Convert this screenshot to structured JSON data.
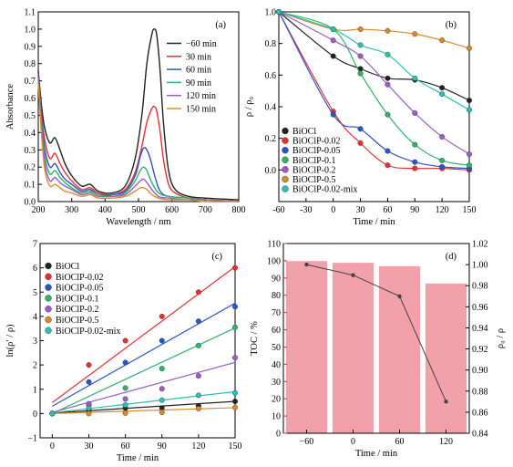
{
  "colors": {
    "black": "#222222",
    "red": "#e63030",
    "blue": "#2a55c8",
    "green": "#2db36a",
    "purple": "#9b5cc8",
    "orange": "#d98a2b",
    "teal": "#2bc0b0",
    "dark_red": "#e84a4a",
    "bar": "#f2a0aa",
    "axis_red": "#c0392b"
  },
  "chart_data": [
    {
      "panel": "(a)",
      "type": "line",
      "xlabel": "Wavelength / nm",
      "ylabel": "Absorbance",
      "xlim": [
        200,
        800
      ],
      "ylim": [
        0,
        1.1
      ],
      "xticks": [
        200,
        300,
        400,
        500,
        600,
        700,
        800
      ],
      "yticks": [
        0.0,
        0.1,
        0.2,
        0.3,
        0.4,
        0.5,
        0.6,
        0.7,
        0.8,
        0.9,
        1.0,
        1.1
      ],
      "ytick_labels": [
        "0.0",
        "0.1",
        "0.2",
        "0.3",
        "0.4",
        "0.5",
        "0.6",
        "0.7",
        "0.8",
        "0.9",
        "1.0",
        "1.1"
      ],
      "legend_position": "top-right",
      "series": [
        {
          "name": "−60 min",
          "color": "#222222",
          "x": [
            200,
            210,
            220,
            235,
            250,
            265,
            280,
            300,
            330,
            355,
            380,
            420,
            460,
            490,
            510,
            525,
            540,
            548,
            555,
            565,
            575,
            590,
            610,
            650,
            700,
            800
          ],
          "y": [
            0.76,
            0.55,
            0.42,
            0.34,
            0.37,
            0.3,
            0.22,
            0.15,
            0.09,
            0.1,
            0.06,
            0.05,
            0.09,
            0.25,
            0.5,
            0.8,
            0.97,
            1.0,
            0.96,
            0.75,
            0.45,
            0.18,
            0.07,
            0.03,
            0.02,
            0.01
          ]
        },
        {
          "name": "30 min",
          "color": "#e63030",
          "x": [
            200,
            210,
            220,
            235,
            250,
            265,
            280,
            300,
            330,
            355,
            380,
            420,
            460,
            490,
            510,
            525,
            540,
            548,
            555,
            565,
            575,
            590,
            610,
            650,
            700,
            800
          ],
          "y": [
            0.74,
            0.5,
            0.35,
            0.25,
            0.28,
            0.22,
            0.17,
            0.12,
            0.07,
            0.08,
            0.05,
            0.04,
            0.07,
            0.17,
            0.32,
            0.46,
            0.54,
            0.55,
            0.52,
            0.4,
            0.24,
            0.1,
            0.05,
            0.02,
            0.01,
            0.0
          ]
        },
        {
          "name": "60 min",
          "color": "#2a55c8",
          "x": [
            200,
            210,
            220,
            235,
            250,
            265,
            280,
            300,
            330,
            355,
            380,
            420,
            460,
            490,
            505,
            515,
            525,
            535,
            550,
            565,
            590,
            650,
            700,
            800
          ],
          "y": [
            0.73,
            0.47,
            0.3,
            0.2,
            0.22,
            0.17,
            0.13,
            0.1,
            0.06,
            0.07,
            0.04,
            0.04,
            0.06,
            0.15,
            0.26,
            0.31,
            0.3,
            0.25,
            0.14,
            0.06,
            0.03,
            0.02,
            0.01,
            0.0
          ]
        },
        {
          "name": "90 min",
          "color": "#2db36a",
          "x": [
            200,
            210,
            220,
            235,
            250,
            265,
            280,
            300,
            330,
            355,
            380,
            420,
            460,
            490,
            505,
            515,
            525,
            540,
            560,
            590,
            650,
            700,
            800
          ],
          "y": [
            0.72,
            0.45,
            0.26,
            0.16,
            0.18,
            0.14,
            0.11,
            0.08,
            0.05,
            0.06,
            0.04,
            0.03,
            0.05,
            0.12,
            0.18,
            0.2,
            0.18,
            0.11,
            0.05,
            0.03,
            0.02,
            0.01,
            0.0
          ]
        },
        {
          "name": "120 min",
          "color": "#9b5cc8",
          "x": [
            200,
            210,
            220,
            235,
            250,
            265,
            280,
            300,
            330,
            355,
            380,
            420,
            460,
            490,
            505,
            515,
            525,
            540,
            560,
            590,
            650,
            700,
            800
          ],
          "y": [
            0.71,
            0.42,
            0.22,
            0.12,
            0.14,
            0.11,
            0.09,
            0.07,
            0.04,
            0.05,
            0.03,
            0.03,
            0.04,
            0.09,
            0.12,
            0.13,
            0.11,
            0.07,
            0.03,
            0.02,
            0.01,
            0.01,
            0.0
          ]
        },
        {
          "name": "150 min",
          "color": "#d98a2b",
          "x": [
            200,
            210,
            220,
            235,
            250,
            265,
            280,
            300,
            330,
            355,
            380,
            420,
            460,
            490,
            505,
            515,
            525,
            540,
            560,
            590,
            650,
            700,
            800
          ],
          "y": [
            0.69,
            0.38,
            0.18,
            0.09,
            0.1,
            0.08,
            0.06,
            0.05,
            0.03,
            0.04,
            0.02,
            0.02,
            0.03,
            0.06,
            0.08,
            0.08,
            0.07,
            0.04,
            0.02,
            0.01,
            0.01,
            0.0,
            0.0
          ]
        }
      ]
    },
    {
      "panel": "(b)",
      "type": "line",
      "xlabel": "Time / min",
      "ylabel": "ρ / ρ₀",
      "xlim": [
        -60,
        150
      ],
      "ylim": [
        -0.2,
        1.0
      ],
      "xticks": [
        -60,
        -30,
        0,
        30,
        60,
        90,
        120,
        150
      ],
      "yticks": [
        0.0,
        0.2,
        0.4,
        0.6,
        0.8,
        1.0
      ],
      "ytick_labels": [
        "0.0",
        "0.2",
        "0.4",
        "0.6",
        "0.8",
        "1.0"
      ],
      "legend_position": "bottom-left",
      "series": [
        {
          "name": "BiOCl",
          "color": "#222222",
          "x": [
            -60,
            0,
            30,
            60,
            90,
            120,
            150
          ],
          "y": [
            1.0,
            0.72,
            0.64,
            0.58,
            0.57,
            0.52,
            0.44
          ]
        },
        {
          "name": "BiOClP-0.02",
          "color": "#e63030",
          "x": [
            -60,
            0,
            30,
            60,
            90,
            120,
            150
          ],
          "y": [
            1.0,
            0.37,
            0.17,
            0.03,
            0.01,
            0.01,
            0.0
          ]
        },
        {
          "name": "BiOClP-0.05",
          "color": "#2a55c8",
          "x": [
            -60,
            0,
            30,
            60,
            90,
            120,
            150
          ],
          "y": [
            1.0,
            0.35,
            0.26,
            0.12,
            0.05,
            0.02,
            0.01
          ]
        },
        {
          "name": "BiOClP-0.1",
          "color": "#2db36a",
          "x": [
            -60,
            0,
            30,
            60,
            90,
            120,
            150
          ],
          "y": [
            1.0,
            0.89,
            0.61,
            0.35,
            0.16,
            0.06,
            0.03
          ]
        },
        {
          "name": "BiOClP-0.2",
          "color": "#9b5cc8",
          "x": [
            -60,
            0,
            30,
            60,
            90,
            120,
            150
          ],
          "y": [
            1.0,
            0.82,
            0.72,
            0.54,
            0.36,
            0.21,
            0.1
          ]
        },
        {
          "name": "BiOClP-0.5",
          "color": "#d98a2b",
          "x": [
            -60,
            0,
            30,
            60,
            90,
            120,
            150
          ],
          "y": [
            1.0,
            0.89,
            0.89,
            0.88,
            0.86,
            0.82,
            0.77
          ]
        },
        {
          "name": "BiOClP-0.02-mix",
          "color": "#2bc0b0",
          "x": [
            -60,
            0,
            30,
            60,
            90,
            120,
            150
          ],
          "y": [
            1.0,
            0.89,
            0.79,
            0.73,
            0.58,
            0.48,
            0.38
          ]
        }
      ]
    },
    {
      "panel": "(c)",
      "type": "scatter",
      "xlabel": "Time / min",
      "ylabel": "ln(ρ′ / ρ)",
      "xlim": [
        -10,
        150
      ],
      "ylim": [
        -1,
        7
      ],
      "xticks": [
        0,
        30,
        60,
        90,
        120,
        150
      ],
      "yticks": [
        -1,
        0,
        1,
        2,
        3,
        4,
        5,
        6,
        7
      ],
      "ytick_labels": [
        "−1",
        "0",
        "1",
        "2",
        "3",
        "4",
        "5",
        "6",
        "7"
      ],
      "legend_position": "top-left",
      "series": [
        {
          "name": "BiOCl",
          "color": "#222222",
          "x": [
            0,
            30,
            60,
            90,
            120,
            150
          ],
          "y": [
            0.0,
            0.13,
            0.22,
            0.23,
            0.32,
            0.5
          ],
          "fit": [
            0.02,
            0.0032
          ]
        },
        {
          "name": "BiOClP-0.02",
          "color": "#e63030",
          "x": [
            0,
            30,
            60,
            90,
            120,
            150
          ],
          "y": [
            0.0,
            2.0,
            3.0,
            4.0,
            5.0,
            6.0
          ],
          "fit": [
            0.45,
            0.0373
          ]
        },
        {
          "name": "BiOClP-0.05",
          "color": "#2a55c8",
          "x": [
            0,
            30,
            60,
            90,
            120,
            150
          ],
          "y": [
            0.0,
            1.3,
            2.1,
            3.0,
            3.8,
            4.4
          ],
          "fit": [
            0.3,
            0.0283
          ]
        },
        {
          "name": "BiOClP-0.1",
          "color": "#2db36a",
          "x": [
            0,
            30,
            60,
            90,
            120,
            150
          ],
          "y": [
            0.0,
            0.35,
            1.05,
            1.85,
            2.8,
            3.55
          ],
          "fit": [
            0.0,
            0.0235
          ]
        },
        {
          "name": "BiOClP-0.2",
          "color": "#9b5cc8",
          "x": [
            0,
            30,
            60,
            90,
            120,
            150
          ],
          "y": [
            0.0,
            0.4,
            0.6,
            1.02,
            1.55,
            2.3
          ],
          "fit": [
            0.05,
            0.0137
          ]
        },
        {
          "name": "BiOClP-0.5",
          "color": "#d98a2b",
          "x": [
            0,
            30,
            60,
            90,
            120,
            150
          ],
          "y": [
            0.0,
            0.0,
            0.02,
            0.05,
            0.2,
            0.25
          ],
          "fit": [
            0.0,
            0.0016
          ]
        },
        {
          "name": "BiOClP-0.02-mix",
          "color": "#2bc0b0",
          "x": [
            0,
            30,
            60,
            90,
            120,
            150
          ],
          "y": [
            0.0,
            0.22,
            0.35,
            0.55,
            0.75,
            0.85
          ],
          "fit": [
            0.03,
            0.0058
          ]
        }
      ]
    },
    {
      "panel": "(d)",
      "type": "bar",
      "xlabel": "Time / min",
      "ylabel": "TOC / %",
      "ylabel_right": "ρ₀ / ρ",
      "categories": [
        "−60",
        "0",
        "60",
        "120"
      ],
      "ylim": [
        0,
        110
      ],
      "yticks": [
        0,
        10,
        20,
        30,
        40,
        50,
        60,
        70,
        80,
        90,
        100,
        110
      ],
      "ylim_right": [
        0.84,
        1.02
      ],
      "yticks_right": [
        0.84,
        0.86,
        0.88,
        0.9,
        0.92,
        0.94,
        0.96,
        0.98,
        1.0,
        1.02
      ],
      "yticks_right_labels": [
        "0.84",
        "0.86",
        "0.88",
        "0.90",
        "0.92",
        "0.94",
        "0.96",
        "0.98",
        "1.00",
        "1.02"
      ],
      "bar_values": [
        100,
        99,
        97,
        87
      ],
      "line_values": [
        1.0,
        0.99,
        0.97,
        0.87
      ]
    }
  ]
}
